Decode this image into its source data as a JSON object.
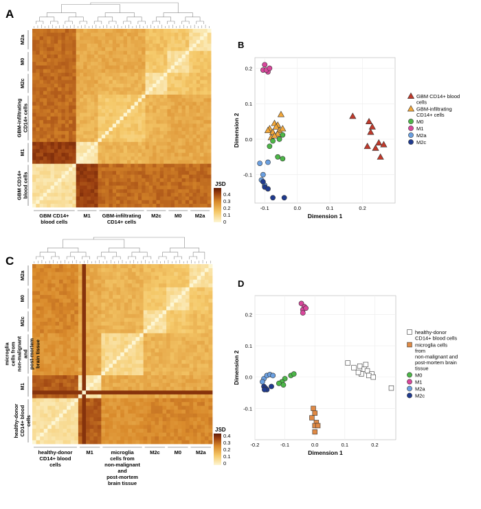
{
  "colors": {
    "gbm_blood": "#c0392b",
    "gbm_infil": "#f2a73a",
    "m0": "#4cb648",
    "m1": "#d9479c",
    "m2a": "#6a9fe0",
    "m2c": "#1f3a8f",
    "healthy": "#ffffff",
    "microglia": "#e08a45",
    "heat_low": "#fdf6d3",
    "heat_high": "#6b1e06"
  },
  "panels": {
    "A": {
      "letter": "A",
      "row_labels": [
        "M2a",
        "M0",
        "M2c",
        "GBM-infiltrating CD14+ cells",
        "M1",
        "GBM CD14+ blood cells"
      ],
      "col_labels": [
        "GBM CD14+ blood cells",
        "M1",
        "GBM-infiltrating CD14+ cells",
        "M2c",
        "M0",
        "M2a"
      ],
      "colorbar": {
        "title": "JSD",
        "ticks": [
          "0.4",
          "0.3",
          "0.2",
          "0.1",
          "0"
        ]
      }
    },
    "C": {
      "letter": "C",
      "row_labels": [
        "M2a",
        "M0",
        "M2c",
        "microglia cells from non-malignant and post-mortem brain tissue",
        "M1",
        "healthy-donor CD14+ blood cells"
      ],
      "col_labels": [
        "healthy-donor CD14+ blood cells",
        "M1",
        "microglia cells from non-malignant and post-mortem brain tissue",
        "M2c",
        "M0",
        "M2a"
      ],
      "colorbar": {
        "title": "JSD",
        "ticks": [
          "0.4",
          "0.3",
          "0.2",
          "0.1",
          "0"
        ]
      }
    }
  },
  "chart_data": [
    {
      "panel": "B",
      "type": "scatter",
      "title": "",
      "xlabel": "Dimension 1",
      "ylabel": "Dimension 2",
      "xlim": [
        -0.13,
        0.3
      ],
      "ylim": [
        -0.18,
        0.23
      ],
      "xticks": [
        "-0.1",
        "0.0",
        "0.1",
        "0.2"
      ],
      "yticks": [
        "0.2",
        "0.1",
        "0.0",
        "-0.1"
      ],
      "grid": true,
      "legend_position": "right",
      "series": [
        {
          "name": "GBM CD14+ blood cells",
          "color_key": "gbm_blood",
          "shape": "triangle",
          "x": [
            0.17,
            0.22,
            0.23,
            0.225,
            0.25,
            0.215,
            0.24,
            0.265,
            0.255
          ],
          "y": [
            0.065,
            0.05,
            0.035,
            0.02,
            -0.01,
            -0.02,
            -0.025,
            -0.015,
            -0.05
          ]
        },
        {
          "name": "GBM-infiltrating CD14+ cells",
          "color_key": "gbm_infil",
          "shape": "triangle",
          "x": [
            -0.05,
            -0.07,
            -0.06,
            -0.085,
            -0.065,
            -0.055,
            -0.09,
            -0.075,
            -0.06,
            -0.045,
            -0.08,
            -0.07
          ],
          "y": [
            0.07,
            0.045,
            0.04,
            0.03,
            0.035,
            0.025,
            0.025,
            0.02,
            0.015,
            0.03,
            0.005,
            0.01
          ]
        },
        {
          "name": "M0",
          "color_key": "m0",
          "shape": "circle",
          "x": [
            -0.045,
            -0.055,
            -0.075,
            -0.085,
            -0.06,
            -0.045
          ],
          "y": [
            0.012,
            0.0,
            -0.005,
            -0.02,
            -0.05,
            -0.055
          ]
        },
        {
          "name": "M1",
          "color_key": "m1",
          "shape": "circle",
          "x": [
            -0.1,
            -0.105,
            -0.09,
            -0.095,
            -0.085
          ],
          "y": [
            0.21,
            0.195,
            0.19,
            0.195,
            0.2
          ]
        },
        {
          "name": "M2a",
          "color_key": "m2a",
          "shape": "circle",
          "x": [
            -0.115,
            -0.09,
            -0.105,
            -0.11,
            -0.1
          ],
          "y": [
            -0.068,
            -0.065,
            -0.1,
            -0.115,
            -0.13
          ]
        },
        {
          "name": "M2c",
          "color_key": "m2c",
          "shape": "circle",
          "x": [
            -0.105,
            -0.1,
            -0.09,
            -0.075,
            -0.04
          ],
          "y": [
            -0.12,
            -0.135,
            -0.14,
            -0.165,
            -0.165
          ]
        }
      ]
    },
    {
      "panel": "D",
      "type": "scatter",
      "title": "",
      "xlabel": "Dimension 1",
      "ylabel": "Dimension 2",
      "xlim": [
        -0.2,
        0.27
      ],
      "ylim": [
        -0.2,
        0.26
      ],
      "xticks": [
        "-0.2",
        "-0.1",
        "0.0",
        "0.1",
        "0.2"
      ],
      "yticks": [
        "0.2",
        "0.1",
        "0.0",
        "-0.1"
      ],
      "grid": true,
      "legend_position": "right",
      "series": [
        {
          "name": "healthy-donor CD14+ blood cells",
          "color_key": "healthy",
          "shape": "square",
          "x": [
            0.11,
            0.13,
            0.15,
            0.17,
            0.165,
            0.175,
            0.19,
            0.155,
            0.145,
            0.18,
            0.195,
            0.255
          ],
          "y": [
            0.045,
            0.03,
            0.035,
            0.04,
            0.025,
            0.02,
            0.01,
            0.01,
            0.015,
            0.005,
            0.0,
            -0.035
          ]
        },
        {
          "name": "microglia cells from non-malignant and post-mortem brain tissue",
          "color_key": "microglia",
          "shape": "square",
          "x": [
            -0.005,
            0.0,
            -0.01,
            0.005,
            0.0,
            0.01,
            0.0
          ],
          "y": [
            -0.1,
            -0.115,
            -0.13,
            -0.145,
            -0.155,
            -0.155,
            -0.175
          ]
        },
        {
          "name": "M0",
          "color_key": "m0",
          "shape": "circle",
          "x": [
            -0.1,
            -0.11,
            -0.12,
            -0.105,
            -0.08,
            -0.07
          ],
          "y": [
            -0.005,
            -0.015,
            -0.02,
            -0.025,
            0.005,
            0.01
          ]
        },
        {
          "name": "M1",
          "color_key": "m1",
          "shape": "circle",
          "x": [
            -0.045,
            -0.035,
            -0.04,
            -0.03,
            -0.04
          ],
          "y": [
            0.235,
            0.225,
            0.215,
            0.22,
            0.205
          ]
        },
        {
          "name": "M2a",
          "color_key": "m2a",
          "shape": "circle",
          "x": [
            -0.17,
            -0.16,
            -0.15,
            -0.14,
            -0.175
          ],
          "y": [
            -0.005,
            0.005,
            0.008,
            0.005,
            -0.015
          ]
        },
        {
          "name": "M2c",
          "color_key": "m2c",
          "shape": "circle",
          "x": [
            -0.17,
            -0.165,
            -0.16,
            -0.145,
            -0.168
          ],
          "y": [
            -0.03,
            -0.035,
            -0.04,
            -0.03,
            -0.04
          ]
        }
      ]
    }
  ]
}
